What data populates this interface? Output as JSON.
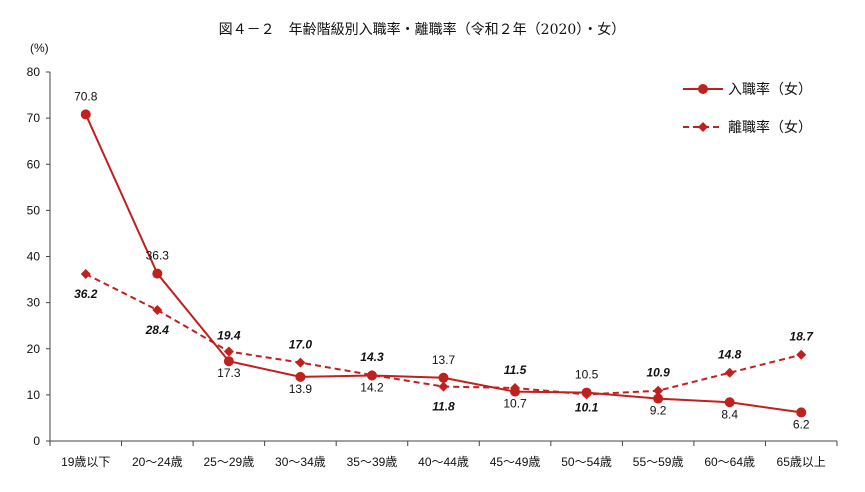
{
  "chart_data": {
    "type": "line",
    "title": "図４－２　年齢階級別入職率・離職率（令和２年（2020）・女）",
    "ylabel": "(%)",
    "xlabel": "",
    "ylim": [
      0,
      80
    ],
    "yticks": [
      0,
      10,
      20,
      30,
      40,
      50,
      60,
      70,
      80
    ],
    "grid": false,
    "legend": "top-right",
    "categories": [
      "19歳以下",
      "20～24歳",
      "25～29歳",
      "30～34歳",
      "35～39歳",
      "40～44歳",
      "45～49歳",
      "50～54歳",
      "55～59歳",
      "60～64歳",
      "65歳以上"
    ],
    "series": [
      {
        "name": "入職率（女）",
        "style": "solid",
        "marker": "circle",
        "color": "#c0201e",
        "values": [
          70.8,
          36.3,
          17.3,
          13.9,
          14.2,
          13.7,
          10.7,
          10.5,
          9.2,
          8.4,
          6.2
        ]
      },
      {
        "name": "離職率（女）",
        "style": "dashed",
        "marker": "diamond",
        "color": "#c0201e",
        "values": [
          36.2,
          28.4,
          19.4,
          17.0,
          14.3,
          11.8,
          11.5,
          10.1,
          10.9,
          14.8,
          18.7
        ]
      }
    ]
  }
}
